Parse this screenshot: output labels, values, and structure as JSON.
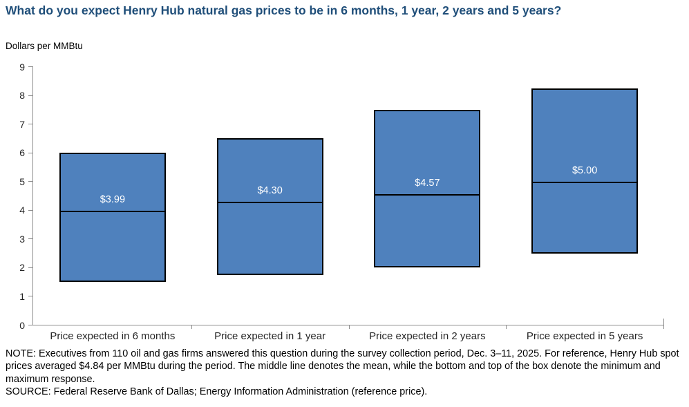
{
  "title": "What do you expect Henry Hub natural gas prices to be in 6 months, 1 year, 2 years and 5 years?",
  "axis_unit": "Dollars per MMBtu",
  "note": "NOTE: Executives from 110 oil and gas firms answered this question during the survey collection period, Dec. 3–11, 2025. For reference, Henry Hub spot prices averaged $4.84 per MMBtu during the period. The middle line denotes the mean, while the bottom and top of the box denote the minimum and maximum response.",
  "source": "SOURCE: Federal Reserve Bank of Dallas; Energy Information Administration (reference price).",
  "colors": {
    "title_text": "#1F4E79",
    "bar_fill": "#4F81BD",
    "bar_border": "#000000",
    "mean_line": "#000000",
    "mean_label_text": "#FFFFFF",
    "axis_line": "#8C8C8C",
    "tick_label_text": "#262626",
    "body_text": "#000000"
  },
  "chart_data": {
    "type": "bar",
    "subtype": "floating-range-box-with-mean-line",
    "title": "What do you expect Henry Hub natural gas prices to be in 6 months, 1 year, 2 years and 5 years?",
    "xlabel": "",
    "ylabel": "Dollars per MMBtu",
    "categories": [
      "Price expected in 6 months",
      "Price expected in 1 year",
      "Price expected in 2 years",
      "Price expected in 5 years"
    ],
    "series": [
      {
        "name": "minimum response",
        "values": [
          1.5,
          1.75,
          2.0,
          2.5
        ]
      },
      {
        "name": "mean",
        "values": [
          3.99,
          4.3,
          4.57,
          5.0
        ]
      },
      {
        "name": "maximum response",
        "values": [
          6.0,
          6.5,
          7.5,
          8.25
        ]
      }
    ],
    "mean_labels": [
      "$3.99",
      "$4.30",
      "$4.57",
      "$5.00"
    ],
    "ylim": [
      0,
      9
    ],
    "ytick_step": 1,
    "grid": false,
    "legend": false
  }
}
